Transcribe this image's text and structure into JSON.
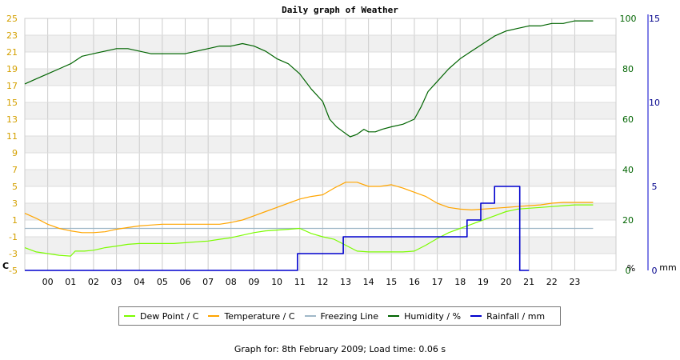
{
  "chart_data": {
    "type": "line",
    "title": "Daily graph of Weather",
    "x_ticks": [
      "00",
      "01",
      "02",
      "03",
      "04",
      "05",
      "06",
      "07",
      "08",
      "09",
      "10",
      "11",
      "12",
      "13",
      "14",
      "15",
      "16",
      "17",
      "18",
      "19",
      "20",
      "21",
      "22",
      "23"
    ],
    "xlim": [
      -1,
      24.8
    ],
    "axes": {
      "temperature": {
        "unit_label": "C",
        "ylim": [
          -5,
          25
        ],
        "ticks": [
          -5,
          -3,
          -1,
          1,
          3,
          5,
          7,
          9,
          11,
          13,
          15,
          17,
          19,
          21,
          23,
          25
        ],
        "color": "#D4A000"
      },
      "humidity": {
        "unit_label": "%",
        "ylim": [
          0,
          100
        ],
        "ticks": [
          0,
          20,
          40,
          60,
          80,
          100
        ],
        "color": "#006400"
      },
      "rainfall": {
        "unit_label": "mm",
        "ylim": [
          0,
          15
        ],
        "ticks": [
          0,
          5,
          10,
          15
        ],
        "color": "#00008B"
      }
    },
    "grid": true,
    "legend_position": "bottom",
    "series": [
      {
        "name": "Dew Point / C",
        "axis": "temperature",
        "color": "#7CFC00",
        "x": [
          -1,
          -0.5,
          0,
          0.5,
          1,
          1.2,
          1.6,
          2,
          2.5,
          3,
          3.5,
          4,
          4.5,
          5,
          5.5,
          6,
          6.5,
          7,
          7.5,
          8,
          8.5,
          9,
          9.5,
          10,
          10.5,
          11,
          11.5,
          12,
          12.5,
          13,
          13.5,
          14,
          14.5,
          15,
          15.5,
          16,
          16.5,
          17,
          17.5,
          18,
          18.5,
          19,
          19.5,
          20,
          20.5,
          21,
          21.5,
          22,
          22.5,
          23,
          23.8
        ],
        "y": [
          -2.3,
          -2.8,
          -3.0,
          -3.2,
          -3.3,
          -2.7,
          -2.7,
          -2.6,
          -2.3,
          -2.1,
          -1.9,
          -1.8,
          -1.8,
          -1.8,
          -1.8,
          -1.7,
          -1.6,
          -1.5,
          -1.3,
          -1.1,
          -0.8,
          -0.5,
          -0.3,
          -0.2,
          -0.1,
          0.0,
          -0.6,
          -1.0,
          -1.3,
          -2.0,
          -2.7,
          -2.8,
          -2.8,
          -2.8,
          -2.8,
          -2.7,
          -2.0,
          -1.2,
          -0.5,
          0.0,
          0.5,
          1.0,
          1.5,
          2.0,
          2.3,
          2.4,
          2.5,
          2.6,
          2.7,
          2.8,
          2.8
        ]
      },
      {
        "name": "Temperature / C",
        "axis": "temperature",
        "color": "#FFA500",
        "x": [
          -1,
          -0.5,
          0,
          0.5,
          1,
          1.5,
          2,
          2.5,
          3,
          3.5,
          4,
          4.5,
          5,
          5.5,
          6,
          6.5,
          7,
          7.5,
          8,
          8.5,
          9,
          9.5,
          10,
          10.5,
          11,
          11.5,
          12,
          12.5,
          13,
          13.5,
          14,
          14.5,
          15,
          15.5,
          16,
          16.5,
          17,
          17.5,
          18,
          18.5,
          19,
          19.5,
          20,
          20.5,
          21,
          21.5,
          22,
          22.5,
          23,
          23.8
        ],
        "y": [
          1.8,
          1.2,
          0.5,
          0.0,
          -0.3,
          -0.5,
          -0.5,
          -0.4,
          -0.1,
          0.1,
          0.3,
          0.4,
          0.5,
          0.5,
          0.5,
          0.5,
          0.5,
          0.5,
          0.7,
          1.0,
          1.5,
          2.0,
          2.5,
          3.0,
          3.5,
          3.8,
          4.0,
          4.8,
          5.5,
          5.5,
          5.0,
          5.0,
          5.2,
          4.8,
          4.3,
          3.8,
          3.0,
          2.5,
          2.3,
          2.2,
          2.3,
          2.4,
          2.5,
          2.6,
          2.7,
          2.8,
          3.0,
          3.1,
          3.1,
          3.1
        ]
      },
      {
        "name": "Freezing Line",
        "axis": "temperature",
        "color": "#A0B8C8",
        "x": [
          -1,
          23.8
        ],
        "y": [
          0,
          0
        ]
      },
      {
        "name": "Humidity / %",
        "axis": "humidity",
        "color": "#006400",
        "x": [
          -1,
          -0.5,
          0,
          0.5,
          1,
          1.5,
          2,
          2.5,
          3,
          3.5,
          4,
          4.5,
          5,
          5.5,
          6,
          6.5,
          7,
          7.5,
          8,
          8.5,
          9,
          9.5,
          10,
          10.5,
          11,
          11.5,
          12,
          12.3,
          12.6,
          12.9,
          13.2,
          13.5,
          13.8,
          14,
          14.3,
          14.6,
          15,
          15.5,
          16,
          16.3,
          16.6,
          17,
          17.5,
          18,
          18.5,
          19,
          19.5,
          20,
          20.5,
          21,
          21.5,
          22,
          22.5,
          23,
          23.8
        ],
        "y": [
          74,
          76,
          78,
          80,
          82,
          85,
          86,
          87,
          88,
          88,
          87,
          86,
          86,
          86,
          86,
          87,
          88,
          89,
          89,
          90,
          89,
          87,
          84,
          82,
          78,
          72,
          67,
          60,
          57,
          55,
          53,
          54,
          56,
          55,
          55,
          56,
          57,
          58,
          60,
          65,
          71,
          75,
          80,
          84,
          87,
          90,
          93,
          95,
          96,
          97,
          97,
          98,
          98,
          99,
          99
        ]
      },
      {
        "name": "Rainfall / mm",
        "axis": "rainfall",
        "color": "#0000CD",
        "x": [
          -1,
          10.9,
          10.9,
          12.9,
          12.9,
          18.3,
          18.3,
          18.9,
          18.9,
          19.5,
          19.5,
          20.6,
          20.6,
          21.0
        ],
        "y": [
          0,
          0,
          1,
          1,
          2,
          2,
          3,
          3,
          4,
          4,
          5,
          5,
          0,
          0
        ]
      }
    ]
  },
  "footer_text": "Graph for: 8th February 2009; Load time: 0.06 s"
}
